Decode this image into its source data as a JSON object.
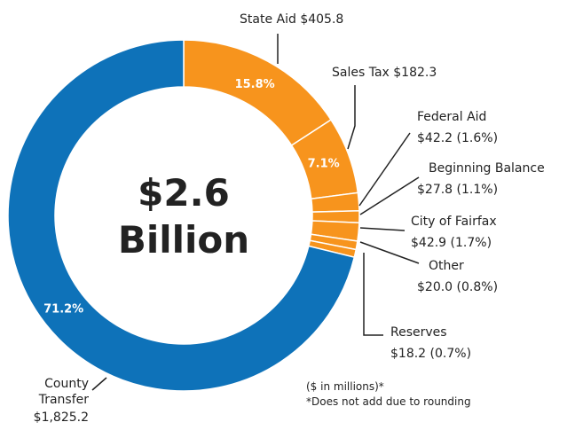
{
  "chart_data": {
    "type": "donut",
    "categories": [
      "State Aid",
      "Sales Tax",
      "Federal Aid",
      "Beginning Balance",
      "City of Fairfax",
      "Other",
      "Reserves",
      "County Transfer"
    ],
    "values": [
      405.8,
      182.3,
      42.2,
      27.8,
      42.9,
      20.0,
      18.2,
      1825.2
    ],
    "value_labels": [
      "$405.8",
      "$182.3",
      "$42.2",
      "$27.8",
      "$42.9",
      "$20.0",
      "$18.2",
      "$1,825.2"
    ],
    "percents": [
      15.8,
      7.1,
      1.6,
      1.1,
      1.7,
      0.8,
      0.7,
      71.2
    ],
    "percent_labels": [
      "15.8%",
      "7.1%",
      "(1.6%)",
      "(1.1%)",
      "(1.7%)",
      "(0.8%)",
      "(0.7%)",
      "71.2%"
    ],
    "colors": [
      "#f7941d",
      "#f7941d",
      "#f7941d",
      "#f7941d",
      "#f7941d",
      "#f7941d",
      "#f7941d",
      "#0e72b9"
    ],
    "center_label": [
      "$2.6",
      "Billion"
    ],
    "notes": [
      "($ in millions)*",
      "*Does not add due to rounding"
    ]
  }
}
